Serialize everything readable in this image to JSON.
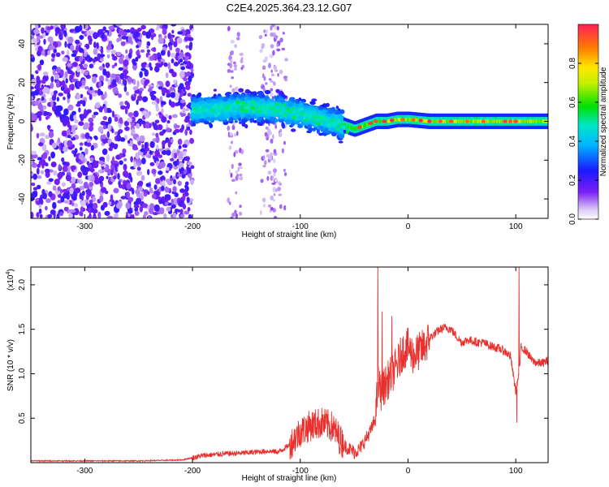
{
  "figure": {
    "title": "C2E4.2025.364.23.12.G07"
  },
  "colors": {
    "snr_line": "#e8312e",
    "spectrum_background": "#ffffff"
  },
  "colormap": {
    "name": "rainbow",
    "label": "Normalized spectral amplitude",
    "range": [
      0.0,
      1.0
    ],
    "tick_labels": [
      "0.0",
      "0.2",
      "0.4",
      "0.6",
      "0.8"
    ],
    "tick_values": [
      0.0,
      0.2,
      0.4,
      0.6,
      0.8
    ]
  },
  "chart_data": [
    {
      "type": "heatmap",
      "title": "C2E4.2025.364.23.12.G07",
      "xlabel": "Height of straight line (km)",
      "ylabel": "Frequency (Hz)",
      "xlim": [
        -350,
        130
      ],
      "ylim": [
        -50,
        50
      ],
      "x_tick_labels": [
        "-300",
        "-200",
        "-100",
        "0",
        "100"
      ],
      "x_tick_values": [
        -300,
        -200,
        -100,
        0,
        100
      ],
      "y_tick_labels": [
        "-40",
        "-20",
        "0",
        "20",
        "40"
      ],
      "y_tick_values": [
        -40,
        -20,
        0,
        20,
        40
      ],
      "regions": [
        {
          "x_range": [
            -350,
            -200
          ],
          "description_values": {
            "freq_range": [
              -50,
              50
            ],
            "amplitude_range": [
              0.0,
              0.25
            ]
          }
        },
        {
          "x_range": [
            -200,
            -60
          ],
          "description_values": {
            "freq_center_start": 6,
            "freq_center_end": -3,
            "half_width_hz": 8,
            "amplitude_range": [
              0.2,
              0.55
            ]
          }
        },
        {
          "x_range": [
            -60,
            130
          ],
          "description_values": {
            "freq_center": 0,
            "half_width_hz": 2,
            "amplitude_range": [
              0.3,
              1.0
            ]
          }
        }
      ],
      "sparse_columns_x": [
        -160,
        -130,
        -120
      ],
      "ridge": {
        "x": [
          -200,
          -180,
          -160,
          -140,
          -120,
          -100,
          -80,
          -60,
          -50,
          -40,
          -30,
          -20,
          -10,
          0,
          20,
          40,
          60,
          80,
          100,
          130
        ],
        "freq_hz": [
          6,
          6,
          7,
          7,
          6,
          4,
          1,
          -2,
          -4,
          -2,
          0,
          0,
          1,
          1,
          0,
          0,
          0,
          0,
          0,
          0
        ]
      }
    },
    {
      "type": "line",
      "xlabel": "Height of straight line (km)",
      "ylabel": "SNR (10 * v/v)",
      "y_multiplier_label": "(x10",
      "y_multiplier_exponent": "4",
      "y_multiplier_close": ")",
      "xlim": [
        -350,
        130
      ],
      "ylim": [
        0,
        2.2
      ],
      "x_tick_labels": [
        "-300",
        "-200",
        "-100",
        "0",
        "100"
      ],
      "x_tick_values": [
        -300,
        -200,
        -100,
        0,
        100
      ],
      "y_tick_labels": [
        "0.5",
        "1.0",
        "1.5",
        "2.0"
      ],
      "y_tick_values": [
        0.5,
        1.0,
        1.5,
        2.0
      ],
      "series": [
        {
          "x": [
            -350,
            -300,
            -250,
            -210,
            -190,
            -170,
            -150,
            -130,
            -120,
            -110,
            -100,
            -90,
            -80,
            -70,
            -60,
            -50,
            -45,
            -40,
            -35,
            -30,
            -28,
            -25,
            -20,
            -15,
            -10,
            -5,
            0,
            5,
            10,
            15,
            20,
            25,
            30,
            35,
            40,
            45,
            50,
            55,
            60,
            65,
            70,
            75,
            80,
            85,
            90,
            95,
            100,
            103,
            105,
            110,
            115,
            120,
            125,
            130
          ],
          "y": [
            0.02,
            0.02,
            0.02,
            0.03,
            0.08,
            0.1,
            0.11,
            0.13,
            0.12,
            0.2,
            0.35,
            0.42,
            0.45,
            0.4,
            0.2,
            0.12,
            0.15,
            0.25,
            0.35,
            0.5,
            0.9,
            0.8,
            0.9,
            1.0,
            1.1,
            1.25,
            1.3,
            1.2,
            1.25,
            1.3,
            1.4,
            1.45,
            1.5,
            1.52,
            1.5,
            1.42,
            1.35,
            1.38,
            1.37,
            1.35,
            1.35,
            1.32,
            1.3,
            1.28,
            1.25,
            1.2,
            0.8,
            1.0,
            1.3,
            1.25,
            1.15,
            1.12,
            1.12,
            1.15
          ],
          "spikes": [
            {
              "x": -28,
              "y": 2.25
            },
            {
              "x": -24,
              "y": 1.7
            },
            {
              "x": -15,
              "y": 1.65
            },
            {
              "x": 101,
              "y": 0.45
            },
            {
              "x": 103,
              "y": 2.25
            }
          ]
        }
      ]
    }
  ]
}
